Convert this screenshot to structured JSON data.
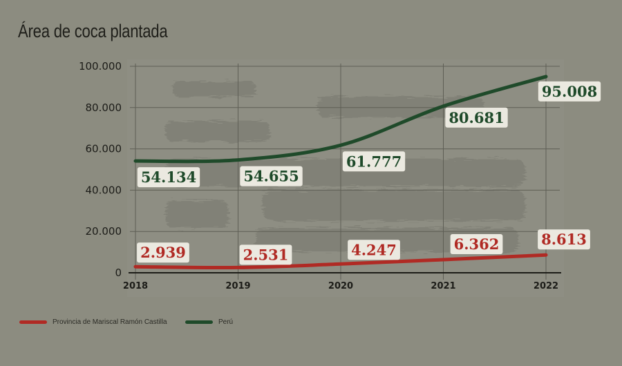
{
  "chart_data": {
    "type": "line",
    "title": "Área de coca plantada",
    "categories": [
      "2018",
      "2019",
      "2020",
      "2021",
      "2022"
    ],
    "ylim": [
      0,
      100000
    ],
    "yticks": [
      {
        "value": 0,
        "label": "0"
      },
      {
        "value": 20000,
        "label": "20.000"
      },
      {
        "value": 40000,
        "label": "40.000"
      },
      {
        "value": 60000,
        "label": "60.000"
      },
      {
        "value": 80000,
        "label": "80.000"
      },
      {
        "value": 100000,
        "label": "100.000"
      }
    ],
    "grid": true,
    "legend_position": "bottom-left",
    "series": [
      {
        "name": "Provincia de Mariscal Ramón Castilla",
        "color": "#b02a24",
        "values": [
          2939,
          2531,
          4247,
          6362,
          8613
        ],
        "labels": [
          "2.939",
          "2.531",
          "4.247",
          "6.362",
          "8.613"
        ]
      },
      {
        "name": "Perú",
        "color": "#1f4a2a",
        "values": [
          54134,
          54655,
          61777,
          80681,
          95008
        ],
        "labels": [
          "54.134",
          "54.655",
          "61.777",
          "80.681",
          "95.008"
        ]
      }
    ]
  }
}
